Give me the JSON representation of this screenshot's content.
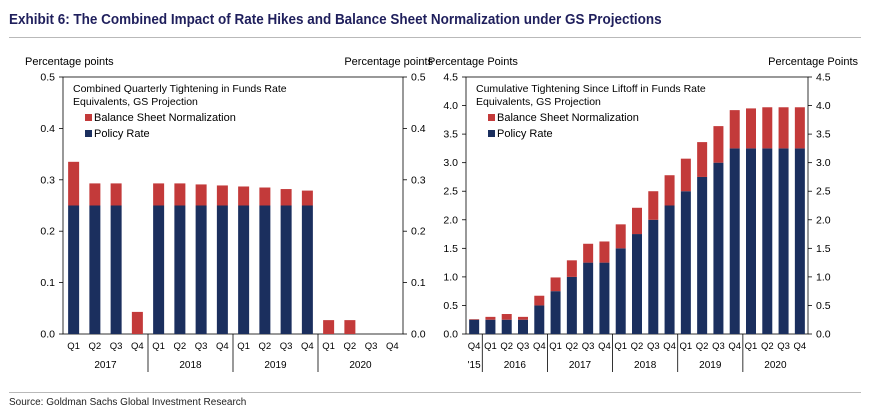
{
  "exhibit_title": "Exhibit 6: The Combined Impact of Rate Hikes and Balance Sheet Normalization under GS Projections",
  "source": "Source: Goldman Sachs Global Investment Research",
  "colors": {
    "policy_rate": "#1b2f5e",
    "balance_sheet": "#c33a3a"
  },
  "chart_data": [
    {
      "type": "bar",
      "stacked": true,
      "title": "Combined Quarterly Tightening in Funds Rate Equivalents, GS Projection",
      "ylabel_left": "Percentage points",
      "ylabel_right": "Percentage points",
      "ylim": [
        0,
        0.5
      ],
      "yticks": [
        "0.0",
        "0.1",
        "0.2",
        "0.3",
        "0.4",
        "0.5"
      ],
      "legend_placement": "top-left",
      "grid": false,
      "categories": [
        "Q1",
        "Q2",
        "Q3",
        "Q4",
        "Q1",
        "Q2",
        "Q3",
        "Q4",
        "Q1",
        "Q2",
        "Q3",
        "Q4",
        "Q1",
        "Q2",
        "Q3",
        "Q4"
      ],
      "groups": [
        {
          "label": "2017",
          "span": 4
        },
        {
          "label": "2018",
          "span": 4
        },
        {
          "label": "2019",
          "span": 4
        },
        {
          "label": "2020",
          "span": 4
        }
      ],
      "series": [
        {
          "name": "Policy Rate",
          "values": [
            0.25,
            0.25,
            0.25,
            0,
            0.25,
            0.25,
            0.25,
            0.25,
            0.25,
            0.25,
            0.25,
            0.25,
            0,
            0,
            0,
            0
          ]
        },
        {
          "name": "Balance Sheet Normalization",
          "values": [
            0.085,
            0.043,
            0.043,
            0.043,
            0.043,
            0.043,
            0.041,
            0.039,
            0.037,
            0.035,
            0.032,
            0.029,
            0.027,
            0.027,
            0,
            0
          ]
        }
      ]
    },
    {
      "type": "bar",
      "stacked": true,
      "title": "Cumulative Tightening Since Liftoff in Funds Rate Equivalents, GS Projection",
      "ylabel_left": "Percentage Points",
      "ylabel_right": "Percentage Points",
      "ylim": [
        0,
        4.5
      ],
      "yticks": [
        "0.0",
        "0.5",
        "1.0",
        "1.5",
        "2.0",
        "2.5",
        "3.0",
        "3.5",
        "4.0",
        "4.5"
      ],
      "legend_placement": "top-left",
      "grid": false,
      "categories": [
        "Q4",
        "Q1",
        "Q2",
        "Q3",
        "Q4",
        "Q1",
        "Q2",
        "Q3",
        "Q4",
        "Q1",
        "Q2",
        "Q3",
        "Q4",
        "Q1",
        "Q2",
        "Q3",
        "Q4",
        "Q1",
        "Q2",
        "Q3",
        "Q4"
      ],
      "groups": [
        {
          "label": "'15",
          "span": 1
        },
        {
          "label": "2016",
          "span": 4
        },
        {
          "label": "2017",
          "span": 4
        },
        {
          "label": "2018",
          "span": 4
        },
        {
          "label": "2019",
          "span": 4
        },
        {
          "label": "2020",
          "span": 4
        }
      ],
      "series": [
        {
          "name": "Policy Rate",
          "values": [
            0.25,
            0.25,
            0.25,
            0.25,
            0.5,
            0.75,
            1.0,
            1.25,
            1.25,
            1.5,
            1.75,
            2.0,
            2.25,
            2.5,
            2.75,
            3.0,
            3.25,
            3.25,
            3.25,
            3.25,
            3.25
          ]
        },
        {
          "name": "Balance Sheet Normalization",
          "values": [
            0.01,
            0.05,
            0.1,
            0.05,
            0.17,
            0.24,
            0.29,
            0.33,
            0.37,
            0.42,
            0.46,
            0.5,
            0.53,
            0.57,
            0.61,
            0.64,
            0.67,
            0.7,
            0.72,
            0.72,
            0.72
          ]
        }
      ]
    }
  ]
}
